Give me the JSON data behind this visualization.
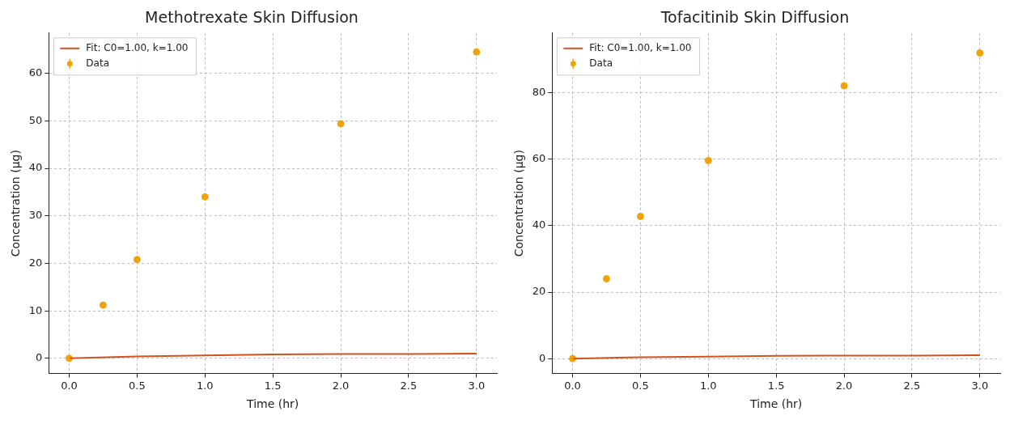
{
  "chart_data": [
    {
      "type": "scatter",
      "title": "Methotrexate Skin Diffusion",
      "xlabel": "Time (hr)",
      "ylabel": "Concentration (µg)",
      "xlim": [
        -0.15,
        3.15
      ],
      "ylim": [
        -3.2,
        68.5
      ],
      "xticks": [
        {
          "value": 0,
          "label": "0.0"
        },
        {
          "value": 0.5,
          "label": "0.5"
        },
        {
          "value": 1,
          "label": "1.0"
        },
        {
          "value": 1.5,
          "label": "1.5"
        },
        {
          "value": 2,
          "label": "2.0"
        },
        {
          "value": 2.5,
          "label": "2.5"
        },
        {
          "value": 3,
          "label": "3.0"
        }
      ],
      "yticks": [
        0,
        10,
        20,
        30,
        40,
        50,
        60
      ],
      "grid": true,
      "legend": "top left",
      "series": [
        {
          "name": "Fit: C0=1.00, k=1.00",
          "type": "line",
          "marker": "none",
          "color": "#d2521a",
          "line_style": "solid",
          "x": [
            0,
            0.5,
            1,
            1.5,
            2,
            2.5,
            3
          ],
          "values": [
            0,
            0.4,
            0.6,
            0.8,
            0.9,
            0.9,
            1
          ]
        },
        {
          "name": "Data",
          "marker": "circle",
          "color": "#f0a30a",
          "x": [
            0,
            0.25,
            0.5,
            1,
            2,
            3
          ],
          "values": [
            0,
            11.2,
            20.8,
            34,
            49.4,
            64.5
          ],
          "errors": [
            0.5,
            0.5,
            0.5,
            0.5,
            0.5,
            0.5
          ]
        }
      ]
    },
    {
      "type": "scatter",
      "title": "Tofacitinib Skin Diffusion",
      "xlabel": "Time (hr)",
      "ylabel": "Concentration (µg)",
      "xlim": [
        -0.15,
        3.15
      ],
      "ylim": [
        -4.5,
        98
      ],
      "xticks": [
        {
          "value": 0,
          "label": "0.0"
        },
        {
          "value": 0.5,
          "label": "0.5"
        },
        {
          "value": 1,
          "label": "1.0"
        },
        {
          "value": 1.5,
          "label": "1.5"
        },
        {
          "value": 2,
          "label": "2.0"
        },
        {
          "value": 2.5,
          "label": "2.5"
        },
        {
          "value": 3,
          "label": "3.0"
        }
      ],
      "yticks": [
        0,
        20,
        40,
        60,
        80
      ],
      "grid": true,
      "legend": "top left",
      "series": [
        {
          "name": "Fit: C0=1.00, k=1.00",
          "type": "line",
          "marker": "none",
          "color": "#d2521a",
          "line_style": "solid",
          "x": [
            0,
            0.5,
            1,
            1.5,
            2,
            2.5,
            3
          ],
          "values": [
            0,
            0.4,
            0.6,
            0.8,
            0.9,
            0.9,
            1
          ]
        },
        {
          "name": "Data",
          "marker": "circle",
          "color": "#f0a30a",
          "x": [
            0,
            0.25,
            0.5,
            1,
            2,
            3
          ],
          "values": [
            0,
            24,
            42.8,
            59.6,
            82.1,
            92
          ],
          "errors": [
            1,
            1,
            1,
            0.5,
            0.8,
            1
          ]
        }
      ]
    }
  ]
}
